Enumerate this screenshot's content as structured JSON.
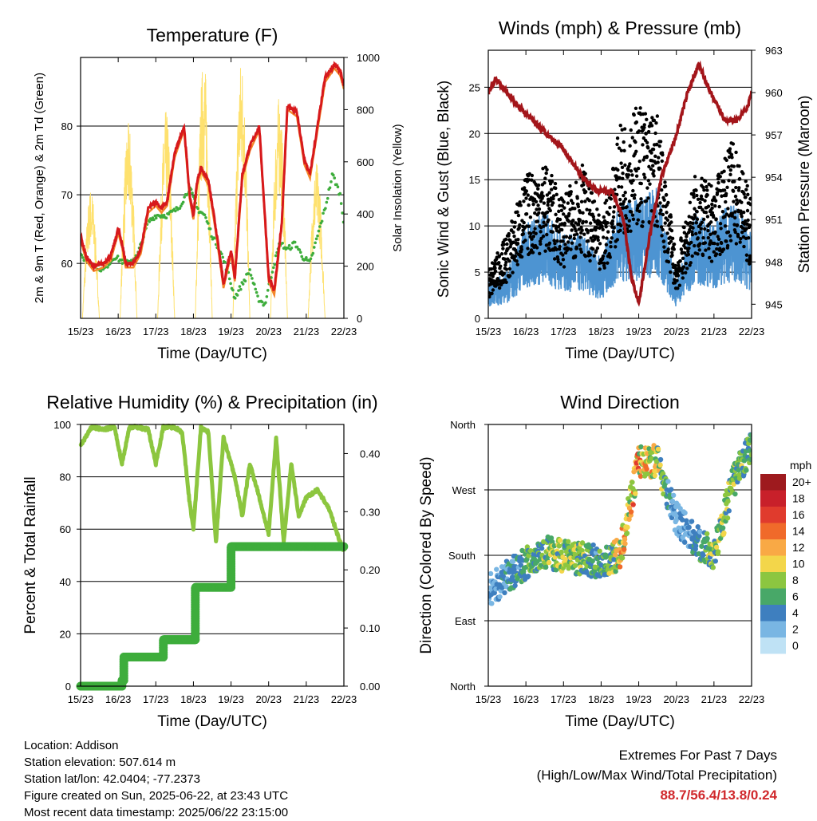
{
  "x_ticks": [
    "15/23",
    "16/23",
    "17/23",
    "18/23",
    "19/23",
    "20/23",
    "21/23",
    "22/23"
  ],
  "panels": {
    "temperature": {
      "title": "Temperature (F)",
      "xlabel": "Time (Day/UTC)",
      "ylabel_left": "2m & 9m T (Red, Orange) & 2m Td (Green)",
      "ylabel_right": "Solar Insolation (Yellow)",
      "left_ticks": [
        "60",
        "70",
        "80"
      ],
      "right_ticks": [
        "0",
        "200",
        "400",
        "600",
        "800",
        "1000"
      ]
    },
    "winds": {
      "title": "Winds (mph) & Pressure (mb)",
      "xlabel": "Time (Day/UTC)",
      "ylabel_left": "Sonic Wind & Gust (Blue, Black)",
      "ylabel_right": "Station Pressure (Maroon)",
      "left_ticks": [
        "0",
        "5",
        "10",
        "15",
        "20",
        "25"
      ],
      "right_ticks": [
        "945",
        "948",
        "951",
        "954",
        "957",
        "960",
        "963"
      ]
    },
    "humidity": {
      "title": "Relative Humidity (%) & Precipitation (in)",
      "xlabel": "Time (Day/UTC)",
      "ylabel_left": "Percent & Total Rainfall",
      "left_ticks": [
        "0",
        "20",
        "40",
        "60",
        "80",
        "100"
      ],
      "right_ticks": [
        "0.00",
        "0.10",
        "0.20",
        "0.30",
        "0.40"
      ]
    },
    "direction": {
      "title": "Wind Direction",
      "xlabel": "Time (Day/UTC)",
      "ylabel_left": "Direction (Colored By Speed)",
      "left_ticks": [
        "North",
        "East",
        "South",
        "West",
        "North"
      ],
      "legend_title": "mph",
      "legend_labels": [
        "20+",
        "18",
        "16",
        "14",
        "12",
        "10",
        "8",
        "6",
        "4",
        "2",
        "0"
      ],
      "legend_colors": [
        "#9e1a1e",
        "#c8202a",
        "#e03b2d",
        "#f06a2a",
        "#f9a945",
        "#f3d64a",
        "#8cc640",
        "#48a868",
        "#3e7fbf",
        "#79b6e3",
        "#bfe2f5"
      ]
    }
  },
  "info": {
    "location": "Location: Addison",
    "elevation": "Station elevation: 507.614 m",
    "latlon": "Station lat/lon: 42.0404; -77.2373",
    "created": "Figure created on Sun, 2025-06-22, at 23:43 UTC",
    "recent": "Most recent data timestamp: 2025/06/22 23:15:00"
  },
  "extremes": {
    "title": "Extremes For Past 7 Days",
    "subtitle": "(High/Low/Max Wind/Total Precipitation)",
    "values": "88.7/56.4/13.8/0.24"
  },
  "chart_data": [
    {
      "type": "line",
      "title": "Temperature (F)",
      "xlabel": "Time (Day/UTC)",
      "ylabel": "2m & 9m T (Red, Orange) & 2m Td (Green)",
      "x_unit": "days since 15/23",
      "xlim": [
        0,
        7
      ],
      "ylim": [
        52,
        90
      ],
      "y2lim": [
        0,
        1000
      ],
      "series": [
        {
          "name": "2m & 9m T",
          "color": "#d7191c",
          "x": [
            0,
            0.15,
            0.35,
            0.6,
            0.8,
            1,
            1.1,
            1.2,
            1.4,
            1.6,
            1.8,
            2,
            2.15,
            2.3,
            2.5,
            2.75,
            2.9,
            3,
            3.1,
            3.2,
            3.4,
            3.6,
            3.8,
            4,
            4.1,
            4.3,
            4.5,
            4.75,
            4.9,
            5,
            5.15,
            5.35,
            5.5,
            5.75,
            5.95,
            6.1,
            6.3,
            6.5,
            6.75,
            6.9,
            7
          ],
          "y": [
            64,
            61,
            59.5,
            60,
            61,
            65,
            63,
            60,
            60,
            62,
            68,
            69,
            68,
            69,
            76,
            80,
            70,
            67,
            72,
            74,
            72,
            65,
            57,
            62,
            58,
            73,
            77,
            80,
            67,
            58,
            56,
            66,
            83,
            82,
            75,
            73,
            80,
            87,
            89,
            88,
            86
          ]
        },
        {
          "name": "2m Td",
          "color": "#3ead3c",
          "x": [
            0,
            0.3,
            0.6,
            0.9,
            1.2,
            1.5,
            1.8,
            2,
            2.3,
            2.6,
            2.9,
            3.1,
            3.3,
            3.5,
            3.7,
            3.9,
            4.1,
            4.3,
            4.5,
            4.7,
            4.9,
            5.1,
            5.3,
            5.5,
            5.7,
            5.9,
            6.1,
            6.3,
            6.5,
            6.7,
            6.9,
            7
          ],
          "y": [
            61,
            60,
            59,
            61,
            60,
            61,
            66,
            67,
            67,
            68,
            71,
            68,
            67,
            64,
            62,
            59,
            55,
            57,
            59,
            55,
            54,
            59,
            63,
            62,
            63,
            61,
            60,
            64,
            68,
            73,
            70,
            66
          ]
        },
        {
          "name": "Solar Insolation",
          "color": "#fee16e",
          "axis": "right",
          "x": [
            0,
            0.25,
            0.5,
            0.75,
            1,
            1.25,
            1.5,
            1.75,
            2,
            2.25,
            2.5,
            2.75,
            3,
            3.25,
            3.5,
            3.75,
            4,
            4.25,
            4.5,
            4.75,
            5,
            5.25,
            5.5,
            5.75,
            6,
            6.25,
            6.5,
            6.75,
            7
          ],
          "y": [
            0,
            500,
            0,
            0,
            0,
            750,
            0,
            0,
            0,
            800,
            0,
            0,
            0,
            1000,
            0,
            0,
            0,
            1000,
            0,
            0,
            0,
            850,
            0,
            0,
            0,
            600,
            0,
            1000,
            0
          ]
        }
      ]
    },
    {
      "type": "line",
      "title": "Winds (mph) & Pressure (mb)",
      "xlabel": "Time (Day/UTC)",
      "ylabel": "Sonic Wind & Gust (Blue, Black)",
      "y2label": "Station Pressure (Maroon)",
      "x_unit": "days since 15/23",
      "xlim": [
        0,
        7
      ],
      "ylim": [
        0,
        29
      ],
      "y2lim": [
        944,
        963
      ],
      "series": [
        {
          "name": "Sonic Wind",
          "color": "#4d94d2",
          "x": [
            0,
            0.5,
            1,
            1.5,
            2,
            2.5,
            3,
            3.5,
            4,
            4.5,
            5,
            5.5,
            6,
            6.5,
            7
          ],
          "y": [
            3,
            4,
            8,
            9,
            7,
            7,
            5,
            10,
            10,
            11,
            3,
            9,
            8,
            10,
            7
          ]
        },
        {
          "name": "Gust",
          "color": "#000000",
          "x": [
            0,
            0.5,
            1,
            1.5,
            2,
            2.5,
            3,
            3.5,
            4,
            4.5,
            5,
            5.5,
            6,
            6.5,
            7
          ],
          "y": [
            4,
            7,
            12,
            13,
            10,
            13,
            8,
            16,
            18,
            17,
            5,
            12,
            11,
            15,
            10
          ]
        },
        {
          "name": "Station Pressure",
          "color": "#a3151a",
          "axis": "right",
          "x": [
            0,
            0.2,
            0.5,
            0.8,
            1.2,
            1.6,
            2,
            2.5,
            2.9,
            3.3,
            3.6,
            3.8,
            4,
            4.3,
            4.6,
            5,
            5.3,
            5.6,
            5.9,
            6.3,
            6.6,
            6.9,
            7
          ],
          "y": [
            960,
            961,
            960,
            959,
            958,
            957,
            956,
            954,
            953,
            953,
            951,
            947,
            945,
            950,
            954,
            957,
            960,
            962,
            960,
            958,
            958,
            959,
            960
          ]
        }
      ]
    },
    {
      "type": "line",
      "title": "Relative Humidity (%) & Precipitation (in)",
      "xlabel": "Time (Day/UTC)",
      "ylabel": "Percent & Total Rainfall",
      "x_unit": "days since 15/23",
      "xlim": [
        0,
        7
      ],
      "ylim": [
        0,
        100
      ],
      "y2lim": [
        0,
        0.45
      ],
      "series": [
        {
          "name": "Relative Humidity",
          "color": "#8cc63f",
          "x": [
            0,
            0.3,
            0.6,
            0.9,
            1.1,
            1.3,
            1.5,
            1.8,
            2,
            2.2,
            2.5,
            2.7,
            2.9,
            3,
            3.2,
            3.4,
            3.6,
            3.8,
            4.1,
            4.3,
            4.5,
            4.7,
            5,
            5.2,
            5.4,
            5.6,
            5.8,
            6,
            6.3,
            6.6,
            6.9,
            7
          ],
          "y": [
            92,
            99,
            98,
            99,
            85,
            99,
            99,
            98,
            85,
            99,
            99,
            97,
            70,
            60,
            99,
            97,
            55,
            95,
            80,
            65,
            85,
            75,
            58,
            95,
            55,
            85,
            65,
            72,
            75,
            68,
            55,
            52
          ]
        },
        {
          "name": "Total Rainfall",
          "color": "#3ead3c",
          "axis": "right",
          "x": [
            0,
            1.1,
            1.15,
            1.7,
            2.2,
            3,
            3.05,
            3.9,
            4,
            7
          ],
          "y": [
            0,
            0.01,
            0.05,
            0.05,
            0.08,
            0.08,
            0.17,
            0.17,
            0.24,
            0.24
          ]
        }
      ]
    },
    {
      "type": "scatter",
      "title": "Wind Direction",
      "xlabel": "Time (Day/UTC)",
      "ylabel": "Direction (Colored By Speed)",
      "x_unit": "days since 15/23",
      "xlim": [
        0,
        7
      ],
      "ylim": [
        0,
        360
      ],
      "y_ticks": [
        0,
        90,
        180,
        270,
        360
      ],
      "series": [
        {
          "name": "Wind Direction",
          "x": [
            0,
            0.5,
            1,
            1.5,
            2,
            2.5,
            3,
            3.5,
            4,
            4.5,
            5,
            5.5,
            6,
            6.5,
            7
          ],
          "y": [
            130,
            150,
            170,
            185,
            180,
            175,
            170,
            180,
            310,
            310,
            230,
            200,
            180,
            280,
            330
          ],
          "speed": [
            3,
            4,
            6,
            7,
            8,
            7,
            5,
            10,
            12,
            9,
            2,
            4,
            8,
            7,
            6
          ]
        }
      ]
    }
  ]
}
